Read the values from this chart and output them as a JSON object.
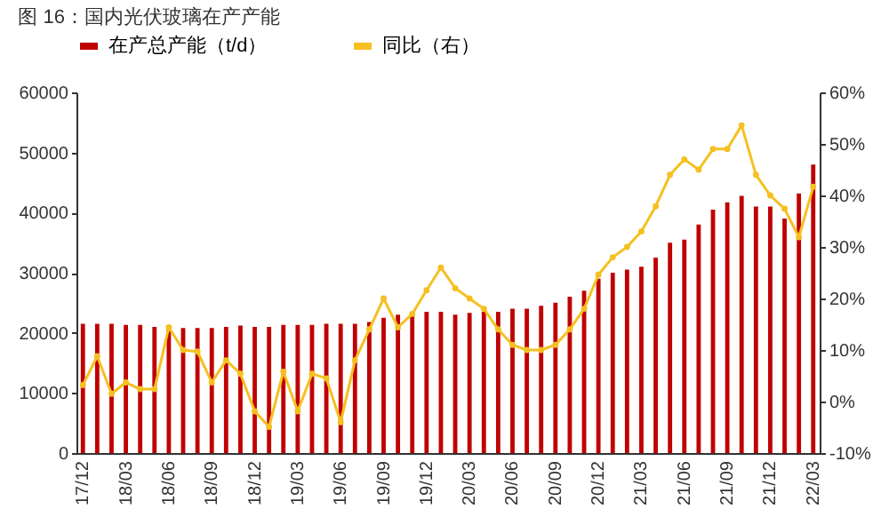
{
  "chart_data": {
    "type": "bar",
    "title": "图 16：国内光伏玻璃在产产能",
    "categories": [
      "17/12",
      null,
      null,
      "18/03",
      null,
      null,
      "18/06",
      null,
      null,
      "18/09",
      null,
      null,
      "18/12",
      null,
      null,
      "19/03",
      null,
      null,
      "19/06",
      null,
      null,
      "19/09",
      null,
      null,
      "19/12",
      null,
      null,
      "20/03",
      null,
      null,
      "20/06",
      null,
      null,
      "20/09",
      null,
      null,
      "20/12",
      null,
      null,
      "21/03",
      null,
      null,
      "21/06",
      null,
      null,
      "21/09",
      null,
      null,
      "21/12",
      null,
      null,
      "22/03"
    ],
    "series": [
      {
        "name": "在产总产能（t/d）",
        "color": "#c00000",
        "values": [
          21500,
          21500,
          21500,
          21300,
          21300,
          21000,
          21000,
          20800,
          20800,
          20800,
          21000,
          21200,
          21000,
          21000,
          21300,
          21300,
          21300,
          21500,
          21500,
          21500,
          21800,
          22500,
          23000,
          23000,
          23500,
          23500,
          23000,
          23300,
          23500,
          23500,
          24000,
          24000,
          24500,
          25000,
          26000,
          27000,
          29000,
          30000,
          30500,
          31000,
          32500,
          35000,
          35500,
          38000,
          40500,
          41700,
          42800,
          41000,
          41000,
          39000,
          43200,
          48000
        ]
      },
      {
        "name": "同比（右）",
        "type": "line",
        "axis": "y2",
        "color": "#f5c020",
        "values": [
          3.2,
          8.8,
          1.5,
          3.7,
          2.4,
          2.4,
          14.4,
          10,
          9.7,
          3.7,
          8,
          5.4,
          -1.9,
          -4.9,
          5.8,
          -1.9,
          5.4,
          4.5,
          -4,
          8,
          14,
          20,
          14.4,
          17,
          21.6,
          26,
          22,
          20,
          18,
          14,
          11,
          10,
          10,
          11,
          14,
          18,
          24.6,
          28,
          30,
          33,
          37.9,
          44,
          47,
          45,
          49,
          49,
          53.6,
          44,
          40,
          37.4,
          31.9,
          41.7
        ]
      }
    ],
    "ylim": [
      0,
      60000
    ],
    "yticks": [
      0,
      10000,
      20000,
      30000,
      40000,
      50000,
      60000
    ],
    "y2lim": [
      -10,
      60
    ],
    "y2ticks": [
      {
        "value": -10,
        "label": "-10%"
      },
      {
        "value": 0,
        "label": "0%"
      },
      {
        "value": 10,
        "label": "10%"
      },
      {
        "value": 20,
        "label": "20%"
      },
      {
        "value": 30,
        "label": "30%"
      },
      {
        "value": 40,
        "label": "40%"
      },
      {
        "value": 50,
        "label": "50%"
      },
      {
        "value": 60,
        "label": "60%"
      }
    ],
    "legend": "top",
    "marker": "circle"
  }
}
